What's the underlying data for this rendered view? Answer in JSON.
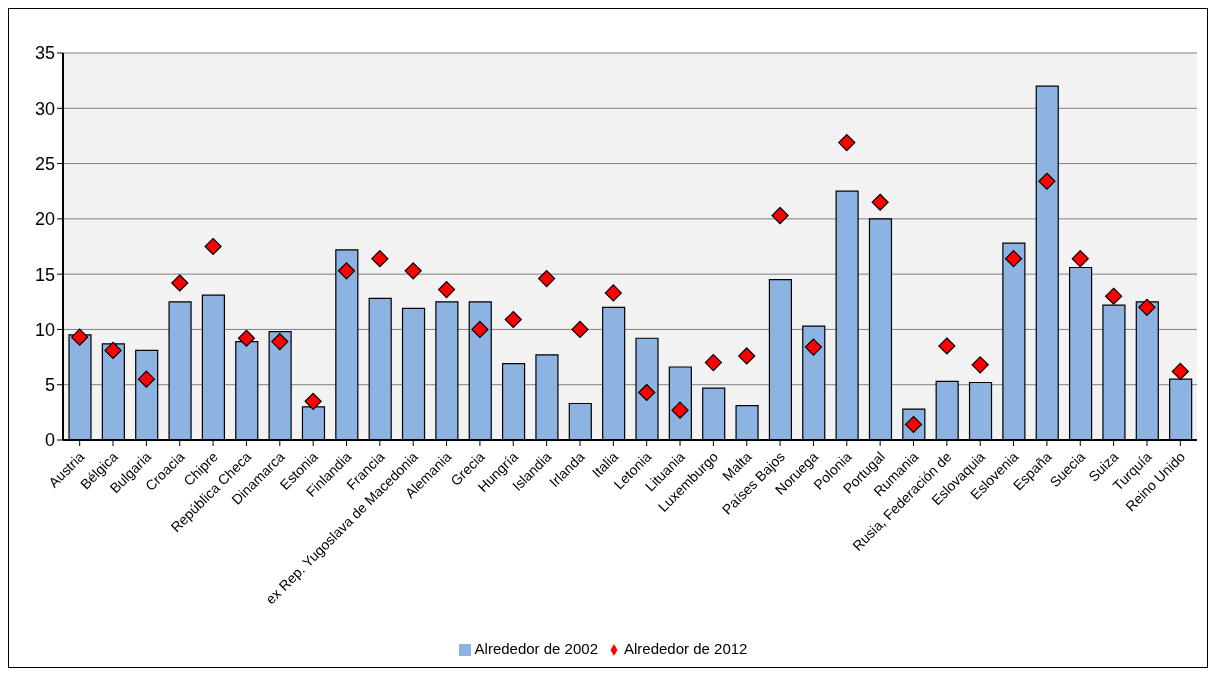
{
  "chart_data": {
    "type": "bar",
    "categories": [
      "Austria",
      "Bélgica",
      "Bulgaria",
      "Croacia",
      "Chipre",
      "República Checa",
      "Dinamarca",
      "Estonia",
      "Finlandia",
      "Francia",
      "ex Rep. Yugoslava de Macedonia",
      "Alemania",
      "Grecia",
      "Hungría",
      "Islandia",
      "Irlanda",
      "Italia",
      "Letonia",
      "Lituania",
      "Luxemburgo",
      "Malta",
      "Países Bajos",
      "Noruega",
      "Polonia",
      "Portugal",
      "Rumania",
      "Rusia, Federación de",
      "Eslovaquia",
      "Eslovenia",
      "España",
      "Suecia",
      "Suiza",
      "Turquía",
      "Reino Unido"
    ],
    "series": [
      {
        "name": "Alrededor de 2002",
        "color": "#8db3e2",
        "values": [
          9.5,
          8.7,
          8.1,
          12.5,
          13.1,
          8.9,
          9.8,
          3.0,
          17.2,
          12.8,
          11.9,
          12.5,
          12.5,
          6.9,
          7.7,
          3.3,
          12.0,
          9.2,
          6.6,
          4.7,
          3.1,
          14.5,
          10.3,
          22.5,
          20.0,
          2.8,
          5.3,
          5.2,
          17.8,
          32.0,
          15.6,
          12.2,
          12.5,
          5.5
        ]
      },
      {
        "name": "Alrededor de 2012",
        "type": "scatter",
        "color": "#ff0000",
        "marker": "diamond",
        "values": [
          9.3,
          8.1,
          5.5,
          14.2,
          17.5,
          9.2,
          8.9,
          3.5,
          15.3,
          16.4,
          15.3,
          13.6,
          10.0,
          10.9,
          14.6,
          10.0,
          13.3,
          4.3,
          2.7,
          7.0,
          7.6,
          20.3,
          8.4,
          26.9,
          21.5,
          1.4,
          8.5,
          6.8,
          16.4,
          23.4,
          16.4,
          13.0,
          12.0,
          6.2
        ]
      }
    ],
    "ylim": [
      0,
      35
    ],
    "yticks": [
      0,
      5,
      10,
      15,
      20,
      25,
      30,
      35
    ],
    "grid": "y",
    "legend": "bottom"
  }
}
